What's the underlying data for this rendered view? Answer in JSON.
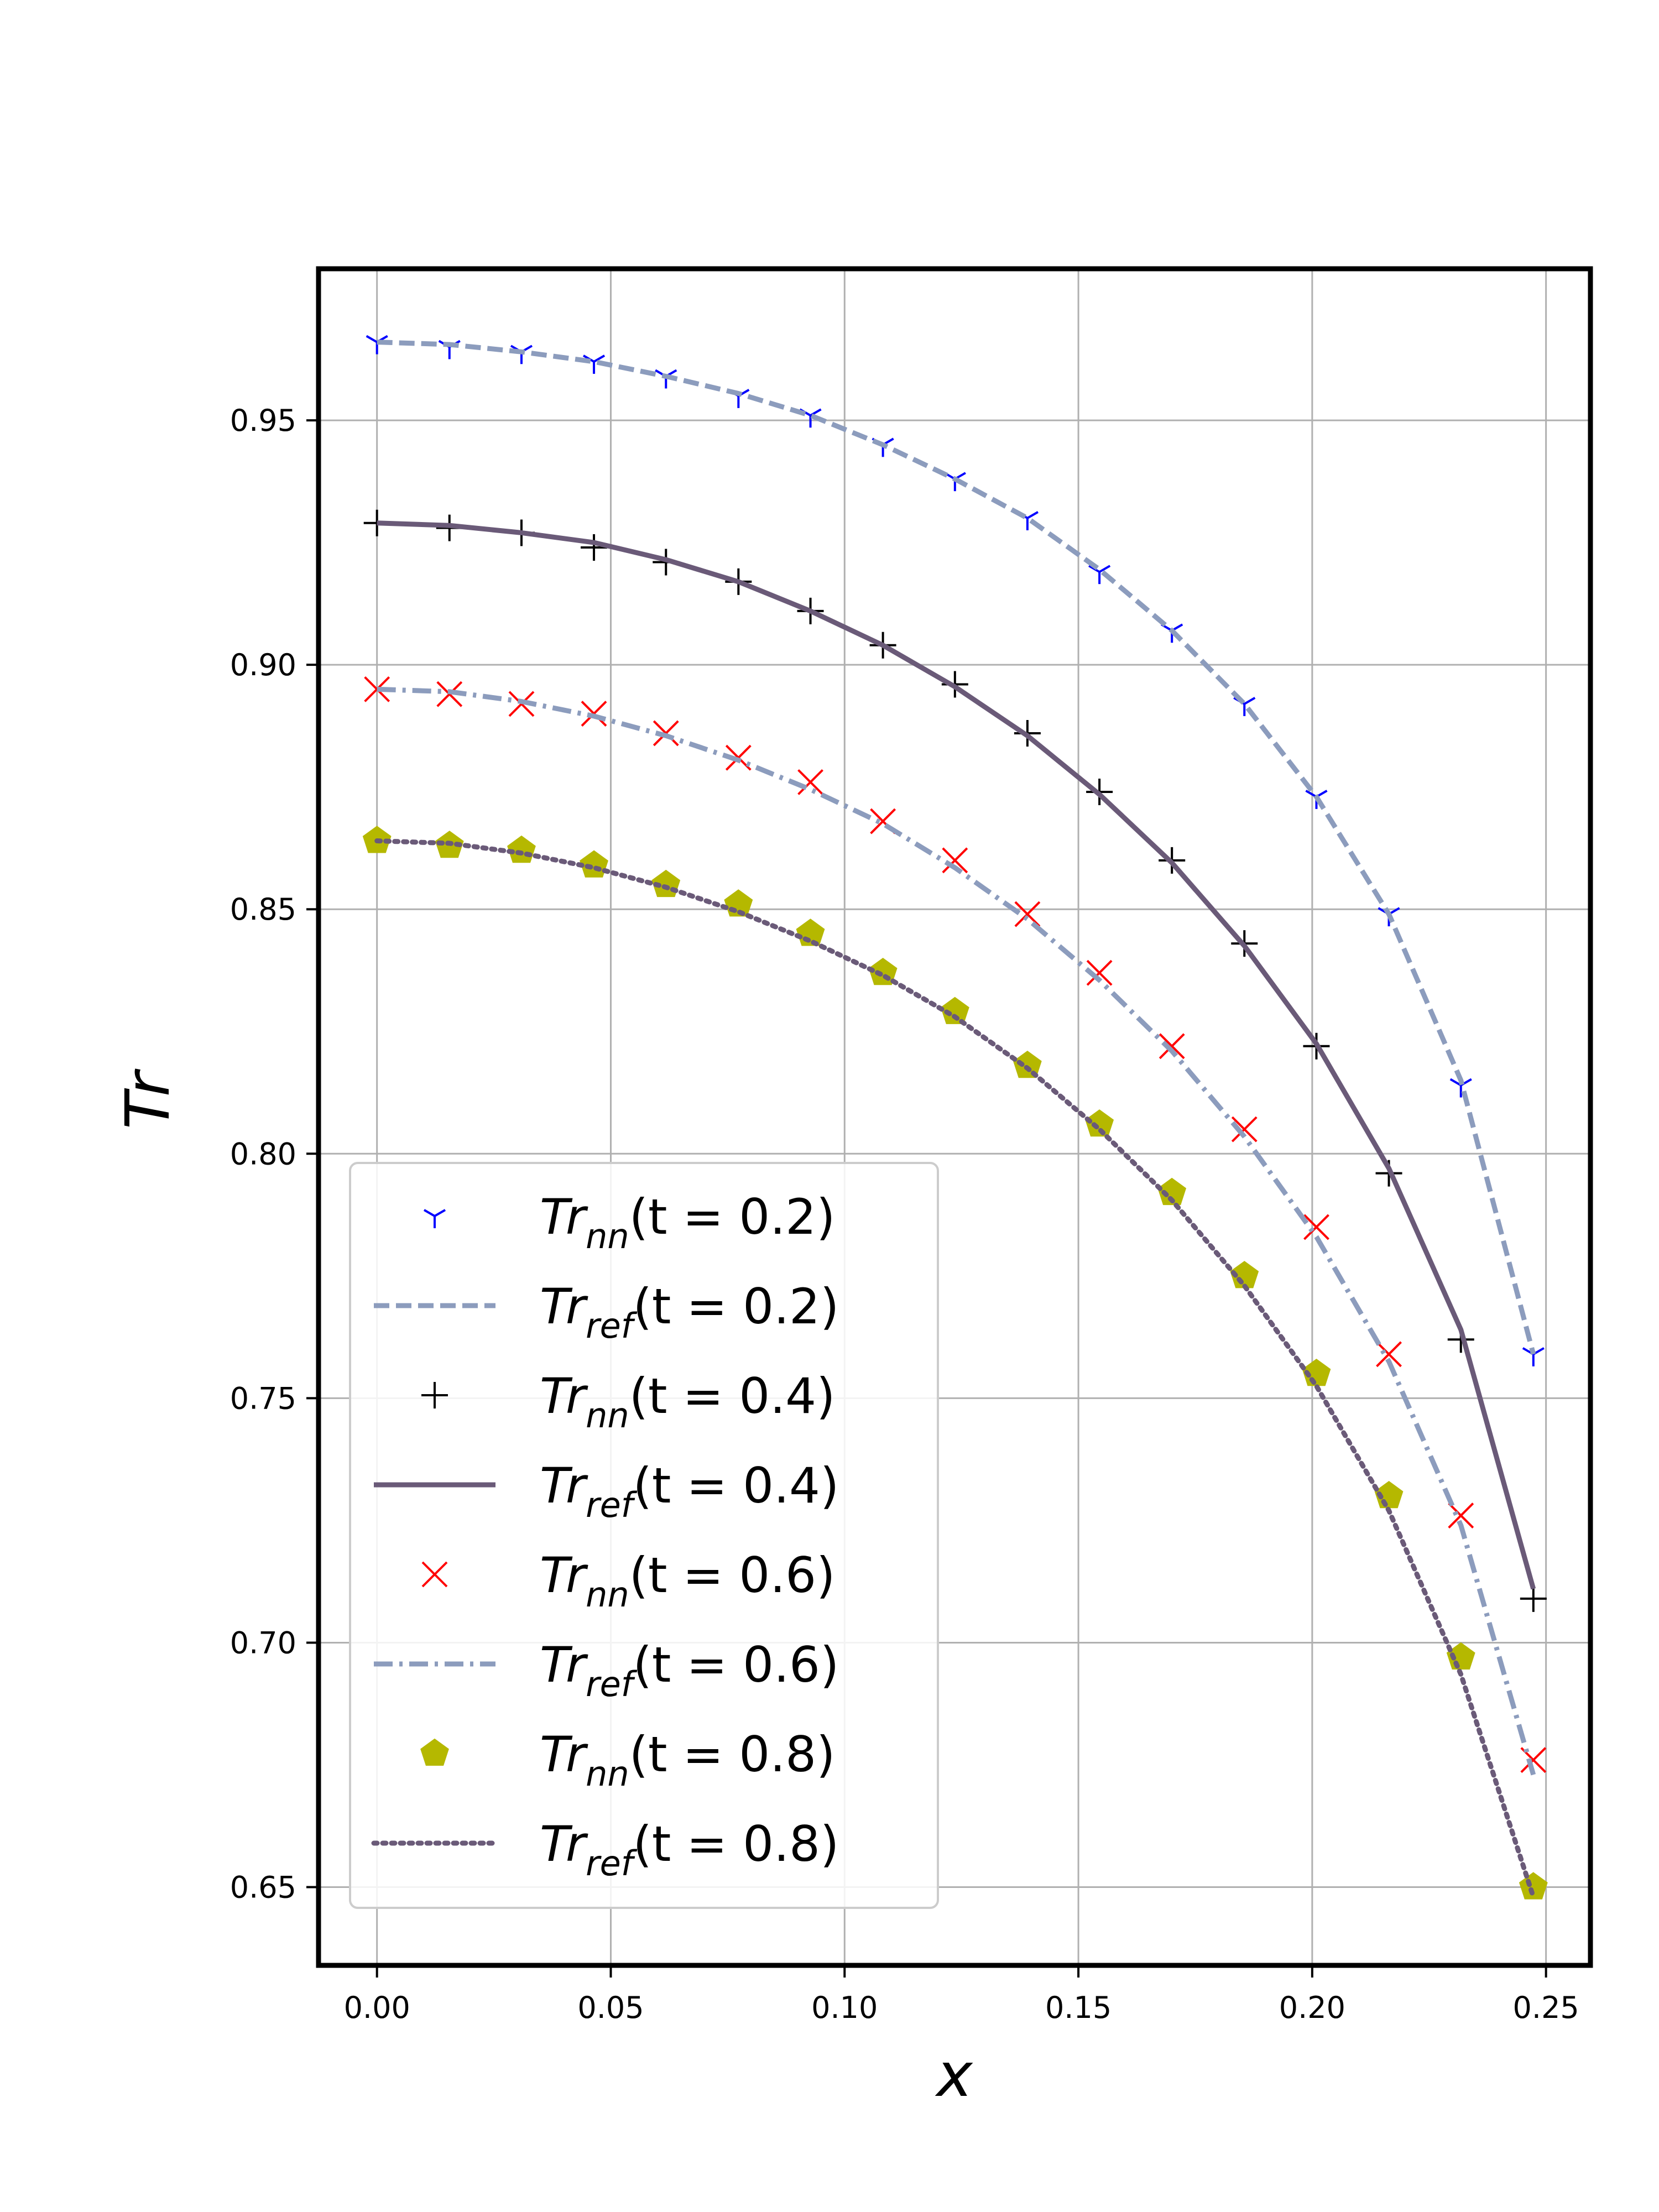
{
  "chart_data": {
    "type": "line",
    "title": "",
    "xlabel": "x",
    "ylabel": "Tr",
    "xlim": [
      -0.0125,
      0.2595
    ],
    "ylim": [
      0.634,
      0.981
    ],
    "xticks": [
      0.0,
      0.05,
      0.1,
      0.15,
      0.2,
      0.25
    ],
    "xtick_labels": [
      "0.00",
      "0.05",
      "0.10",
      "0.15",
      "0.20",
      "0.25"
    ],
    "yticks": [
      0.65,
      0.7,
      0.75,
      0.8,
      0.85,
      0.9,
      0.95
    ],
    "ytick_labels": [
      "0.65",
      "0.70",
      "0.75",
      "0.80",
      "0.85",
      "0.90",
      "0.95"
    ],
    "grid": true,
    "legend_position": "lower-left",
    "x": [
      0.0,
      0.0155,
      0.0309,
      0.0464,
      0.0618,
      0.0773,
      0.0927,
      0.1082,
      0.1236,
      0.1391,
      0.1545,
      0.17,
      0.1855,
      0.2009,
      0.2164,
      0.2318,
      0.2473
    ],
    "series": [
      {
        "name": "Tr_nn(t = 0.2)",
        "legend": {
          "base": "Tr",
          "sub": "nn",
          "suffix": "(t = 0.2)"
        },
        "kind": "markers",
        "marker": "tri-down",
        "color": "#0000ff",
        "values": [
          0.966,
          0.965,
          0.964,
          0.962,
          0.959,
          0.955,
          0.951,
          0.945,
          0.938,
          0.93,
          0.919,
          0.907,
          0.892,
          0.873,
          0.849,
          0.814,
          0.759
        ]
      },
      {
        "name": "Tr_ref(t = 0.2)",
        "legend": {
          "base": "Tr",
          "sub": "ref",
          "suffix": "(t = 0.2)"
        },
        "kind": "line",
        "dash": "dashed",
        "color": "#8c9cbd",
        "values": [
          0.966,
          0.9655,
          0.964,
          0.962,
          0.959,
          0.9555,
          0.951,
          0.945,
          0.938,
          0.93,
          0.9195,
          0.907,
          0.892,
          0.873,
          0.849,
          0.815,
          0.759
        ]
      },
      {
        "name": "Tr_nn(t = 0.4)",
        "legend": {
          "base": "Tr",
          "sub": "nn",
          "suffix": "(t = 0.4)"
        },
        "kind": "markers",
        "marker": "plus",
        "color": "#000000",
        "values": [
          0.929,
          0.928,
          0.927,
          0.924,
          0.921,
          0.917,
          0.911,
          0.904,
          0.896,
          0.886,
          0.874,
          0.86,
          0.843,
          0.822,
          0.796,
          0.762,
          0.709
        ]
      },
      {
        "name": "Tr_ref(t = 0.4)",
        "legend": {
          "base": "Tr",
          "sub": "ref",
          "suffix": "(t = 0.4)"
        },
        "kind": "line",
        "dash": "solid",
        "color": "#6a5a78",
        "values": [
          0.929,
          0.9285,
          0.927,
          0.925,
          0.9215,
          0.917,
          0.911,
          0.904,
          0.8955,
          0.8855,
          0.8735,
          0.8595,
          0.8425,
          0.8225,
          0.797,
          0.764,
          0.711
        ]
      },
      {
        "name": "Tr_nn(t = 0.6)",
        "legend": {
          "base": "Tr",
          "sub": "nn",
          "suffix": "(t = 0.6)"
        },
        "kind": "markers",
        "marker": "x",
        "color": "#ff0000",
        "values": [
          0.895,
          0.894,
          0.892,
          0.89,
          0.886,
          0.881,
          0.876,
          0.868,
          0.86,
          0.849,
          0.837,
          0.822,
          0.805,
          0.785,
          0.759,
          0.726,
          0.676
        ]
      },
      {
        "name": "Tr_ref(t = 0.6)",
        "legend": {
          "base": "Tr",
          "sub": "ref",
          "suffix": "(t = 0.6)"
        },
        "kind": "line",
        "dash": "dashdot",
        "color": "#8c9cbd",
        "values": [
          0.895,
          0.8945,
          0.8925,
          0.8895,
          0.8855,
          0.8805,
          0.8745,
          0.8675,
          0.8585,
          0.848,
          0.8355,
          0.821,
          0.8035,
          0.783,
          0.7575,
          0.724,
          0.673
        ]
      },
      {
        "name": "Tr_nn(t = 0.8)",
        "legend": {
          "base": "Tr",
          "sub": "nn",
          "suffix": "(t = 0.8)"
        },
        "kind": "markers",
        "marker": "pentagon",
        "color": "#b5b800",
        "values": [
          0.864,
          0.863,
          0.862,
          0.859,
          0.855,
          0.851,
          0.845,
          0.837,
          0.829,
          0.818,
          0.806,
          0.792,
          0.775,
          0.755,
          0.73,
          0.697,
          0.65
        ]
      },
      {
        "name": "Tr_ref(t = 0.8)",
        "legend": {
          "base": "Tr",
          "sub": "ref",
          "suffix": "(t = 0.8)"
        },
        "kind": "line",
        "dash": "dotted",
        "color": "#6a5a78",
        "values": [
          0.864,
          0.8635,
          0.8615,
          0.8585,
          0.8545,
          0.8495,
          0.8435,
          0.8365,
          0.828,
          0.8175,
          0.805,
          0.7905,
          0.773,
          0.7525,
          0.727,
          0.6935,
          0.648
        ]
      }
    ]
  }
}
